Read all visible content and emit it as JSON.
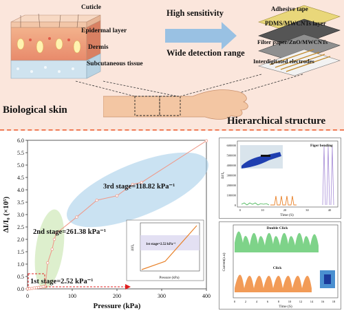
{
  "top": {
    "skin_layers": [
      "Cuticle",
      "Epidermal layer",
      "Dermis",
      "Subcutaneous tissue"
    ],
    "features": [
      "High sensitivity",
      "Wide detection range"
    ],
    "device_layers": [
      "Adhesive tape",
      "PDMS/MWCNTs layer",
      "Filter paper/ZnO/MWCNTs",
      "Interdigitated electrodes"
    ],
    "left_caption": "Biological skin",
    "right_caption": "Hierarchical structure"
  },
  "main_chart": {
    "ylabel": "ΔI/I₀ (×10⁵)",
    "xlabel": "Pressure (kPa)",
    "x_ticks": [
      "0",
      "100",
      "200",
      "300",
      "400"
    ],
    "y_ticks": [
      "0.0",
      "0.5",
      "1.0",
      "1.5",
      "2.0",
      "2.5",
      "3.0",
      "3.5",
      "4.0",
      "4.5",
      "5.0",
      "5.5",
      "6.0"
    ],
    "stage1": "1st stage=2.52 kPa⁻¹",
    "stage2": "2nd stage=261.38 kPa⁻¹",
    "stage3": "3rd stage=118.82 kPa⁻¹",
    "inset_stage": "1st stage=2.52 kPa⁻¹",
    "inset_xlabel": "Pressure (kPa)",
    "inset_ylabel": "ΔI/I₀"
  },
  "chart_data": [
    {
      "type": "line",
      "xlabel": "Pressure (kPa)",
      "ylabel": "ΔI/I₀ (×10⁵)",
      "xlim": [
        0,
        400
      ],
      "ylim": [
        0,
        6
      ],
      "series": [
        {
          "values": [
            [
              0,
              0
            ],
            [
              5,
              0.01
            ],
            [
              10,
              0.02
            ],
            [
              15,
              0.04
            ],
            [
              20,
              0.05
            ],
            [
              25,
              0.06
            ],
            [
              30,
              0.07
            ],
            [
              35,
              0.09
            ],
            [
              40,
              0.1
            ],
            [
              45,
              1.05
            ],
            [
              55,
              1.6
            ],
            [
              60,
              2.0
            ],
            [
              65,
              2.25
            ],
            [
              110,
              2.9
            ],
            [
              155,
              3.58
            ],
            [
              200,
              3.76
            ],
            [
              235,
              4.22
            ],
            [
              255,
              4.3
            ],
            [
              400,
              5.98
            ]
          ]
        }
      ]
    },
    {
      "type": "line",
      "xlabel": "Time (S)",
      "ylabel": "ΔI/I₀",
      "title": "Figer bending",
      "xlim": [
        0,
        45
      ],
      "ylim": [
        0,
        600000
      ],
      "y_ticks": [
        "0",
        "100000",
        "200000",
        "300000",
        "400000",
        "500000",
        "600000"
      ],
      "x_ticks": [
        "0",
        "10",
        "20",
        "30",
        "40"
      ]
    },
    {
      "type": "line",
      "xlabel": "Time (S)",
      "ylabel": "Current(a.u)",
      "annotations": [
        "Double Click",
        "Click"
      ],
      "x_ticks": [
        "0",
        "2",
        "4",
        "6",
        "8",
        "10",
        "12",
        "14",
        "16",
        "18"
      ]
    }
  ],
  "panel2": {
    "title": "Figer bending",
    "ylabel": "ΔI/I₀",
    "xlabel": "Time (S)",
    "y_ticks": [
      "600000",
      "500000",
      "400000",
      "300000",
      "200000",
      "100000",
      "0"
    ],
    "x_ticks": [
      "0",
      "10",
      "20",
      "30",
      "40"
    ]
  },
  "panel3": {
    "label_double": "Double Click",
    "label_click": "Click",
    "ylabel": "Current(a.u)",
    "xlabel": "Time (S)",
    "x_ticks": [
      "0",
      "2",
      "4",
      "6",
      "8",
      "10",
      "12",
      "14",
      "16",
      "18"
    ]
  },
  "colors": {
    "bg_top": "#fbe6dc",
    "arrow_blue": "#5b9bd5",
    "curve": "#ef9a8a",
    "ellipse_blue": "#9ecbe8",
    "ellipse_green": "#cfe8b8",
    "red": "#e02020",
    "orange": "#e8822a",
    "green": "#3fb34f"
  }
}
